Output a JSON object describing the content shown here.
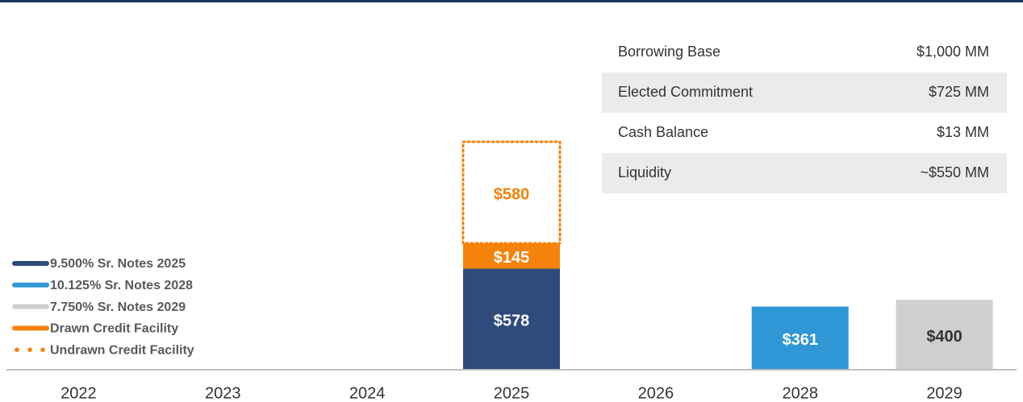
{
  "chart_data": {
    "type": "stacked_bar",
    "categories": [
      "2022",
      "2023",
      "2024",
      "2025",
      "2026",
      "2028",
      "2029"
    ],
    "series": [
      {
        "name": "9.500% Sr. Notes 2025",
        "color": "#2f4b7c",
        "label_color": "#ffffff",
        "style": "solid",
        "values": [
          null,
          null,
          null,
          578,
          null,
          null,
          null
        ],
        "value_labels": [
          null,
          null,
          null,
          "$578",
          null,
          null,
          null
        ]
      },
      {
        "name": "10.125% Sr. Notes 2028",
        "color": "#2f97d6",
        "label_color": "#ffffff",
        "style": "solid",
        "values": [
          null,
          null,
          null,
          null,
          null,
          361,
          null
        ],
        "value_labels": [
          null,
          null,
          null,
          null,
          null,
          "$361",
          null
        ]
      },
      {
        "name": "7.750% Sr. Notes 2029",
        "color": "#d0cece",
        "label_color": "#333333",
        "style": "solid",
        "values": [
          null,
          null,
          null,
          null,
          null,
          null,
          400
        ],
        "value_labels": [
          null,
          null,
          null,
          null,
          null,
          null,
          "$400"
        ]
      },
      {
        "name": "Drawn Credit Facility",
        "color": "#f5820a",
        "label_color": "#ffffff",
        "style": "solid",
        "values": [
          null,
          null,
          null,
          145,
          null,
          null,
          null
        ],
        "value_labels": [
          null,
          null,
          null,
          "$145",
          null,
          null,
          null
        ]
      },
      {
        "name": "Undrawn Credit Facility",
        "color": "#f5820a",
        "label_color": "#f5820a",
        "style": "dotted",
        "values": [
          null,
          null,
          null,
          580,
          null,
          null,
          null
        ],
        "value_labels": [
          null,
          null,
          null,
          "$580",
          null,
          null,
          null
        ]
      }
    ],
    "legend": "lower-left"
  },
  "table": {
    "rows": [
      [
        "Borrowing Base",
        "$1,000 MM"
      ],
      [
        "Elected Commitment",
        "$725 MM"
      ],
      [
        "Cash Balance",
        "$13 MM"
      ],
      [
        "Liquidity",
        "~$550 MM"
      ]
    ]
  }
}
